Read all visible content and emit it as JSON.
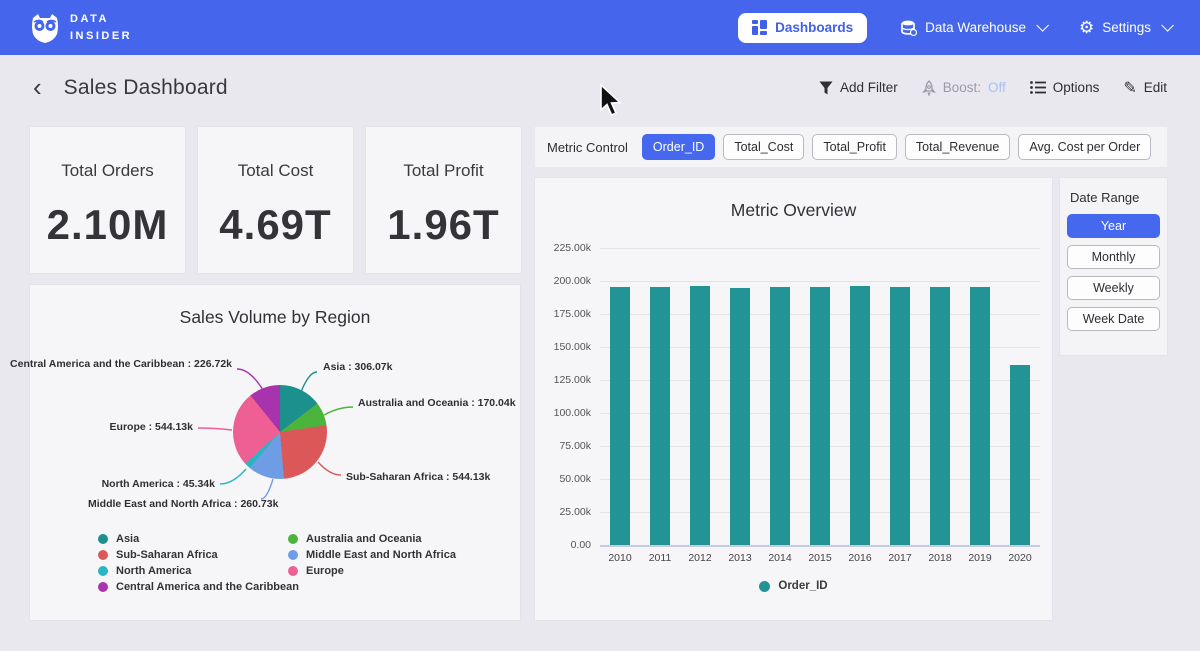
{
  "nav": {
    "brand": {
      "line1": "DATA",
      "line2": "INSIDER"
    },
    "items": [
      {
        "label": "Dashboards",
        "active": true
      },
      {
        "label": "Data Warehouse",
        "active": false
      },
      {
        "label": "Settings",
        "active": false
      }
    ]
  },
  "header": {
    "title": "Sales Dashboard",
    "actions": {
      "add_filter": "Add Filter",
      "boost_label": "Boost:",
      "boost_state": "Off",
      "options": "Options",
      "edit": "Edit"
    }
  },
  "kpis": [
    {
      "label": "Total Orders",
      "value": "2.10M"
    },
    {
      "label": "Total Cost",
      "value": "4.69T"
    },
    {
      "label": "Total Profit",
      "value": "1.96T"
    }
  ],
  "metric_control": {
    "label": "Metric Control",
    "options": [
      "Order_ID",
      "Total_Cost",
      "Total_Profit",
      "Total_Revenue",
      "Avg. Cost per Order"
    ],
    "selected": "Order_ID"
  },
  "date_range": {
    "label": "Date Range",
    "options": [
      "Year",
      "Monthly",
      "Weekly",
      "Week Date"
    ],
    "selected": "Year"
  },
  "colors": {
    "nav_blue": "#4565ec",
    "accent_blue": "#4568ee",
    "bar_teal": "#239496"
  },
  "chart_data": [
    {
      "type": "bar",
      "title": "Metric Overview",
      "categories": [
        "2010",
        "2011",
        "2012",
        "2013",
        "2014",
        "2015",
        "2016",
        "2017",
        "2018",
        "2019",
        "2020"
      ],
      "series": [
        {
          "name": "Order_ID",
          "values": [
            195.6,
            195.6,
            196.4,
            195.1,
            195.3,
            195.7,
            196.3,
            195.8,
            195.2,
            195.7,
            136.2
          ]
        }
      ],
      "unit": "k",
      "ylim": [
        0,
        225
      ],
      "ytick_step": 25,
      "ytick_labels": [
        "0.00",
        "25.00k",
        "50.00k",
        "75.00k",
        "100.00k",
        "125.00k",
        "150.00k",
        "175.00k",
        "200.00k",
        "225.00k"
      ],
      "grid": true,
      "legend_position": "bottom",
      "bar_color": "#239496"
    },
    {
      "type": "pie",
      "title": "Sales Volume by Region",
      "slices": [
        {
          "label": "Asia",
          "value": 306.07,
          "display": "Asia : 306.07k",
          "color": "#1c908c"
        },
        {
          "label": "Australia and Oceania",
          "value": 170.04,
          "display": "Australia and Oceania : 170.04k",
          "color": "#4bb43c"
        },
        {
          "label": "Sub-Saharan Africa",
          "value": 544.13,
          "display": "Sub-Saharan Africa : 544.13k",
          "color": "#dc5858"
        },
        {
          "label": "Middle East and North Africa",
          "value": 260.73,
          "display": "Middle East and North Africa : 260.73k",
          "color": "#6f9de5"
        },
        {
          "label": "North America",
          "value": 45.34,
          "display": "North America : 45.34k",
          "color": "#2ab5c4"
        },
        {
          "label": "Europe",
          "value": 544.13,
          "display": "Europe : 544.13k",
          "color": "#ee5f94"
        },
        {
          "label": "Central America and the Caribbean",
          "value": 226.72,
          "display": "Central America and the Caribbean : 226.72k",
          "color": "#a933ad"
        }
      ],
      "unit": "k",
      "legend_columns": [
        [
          "Asia",
          "Sub-Saharan Africa",
          "North America",
          "Central America and the Caribbean"
        ],
        [
          "Australia and Oceania",
          "Middle East and North Africa",
          "Europe"
        ]
      ],
      "legend_position": "bottom"
    }
  ]
}
